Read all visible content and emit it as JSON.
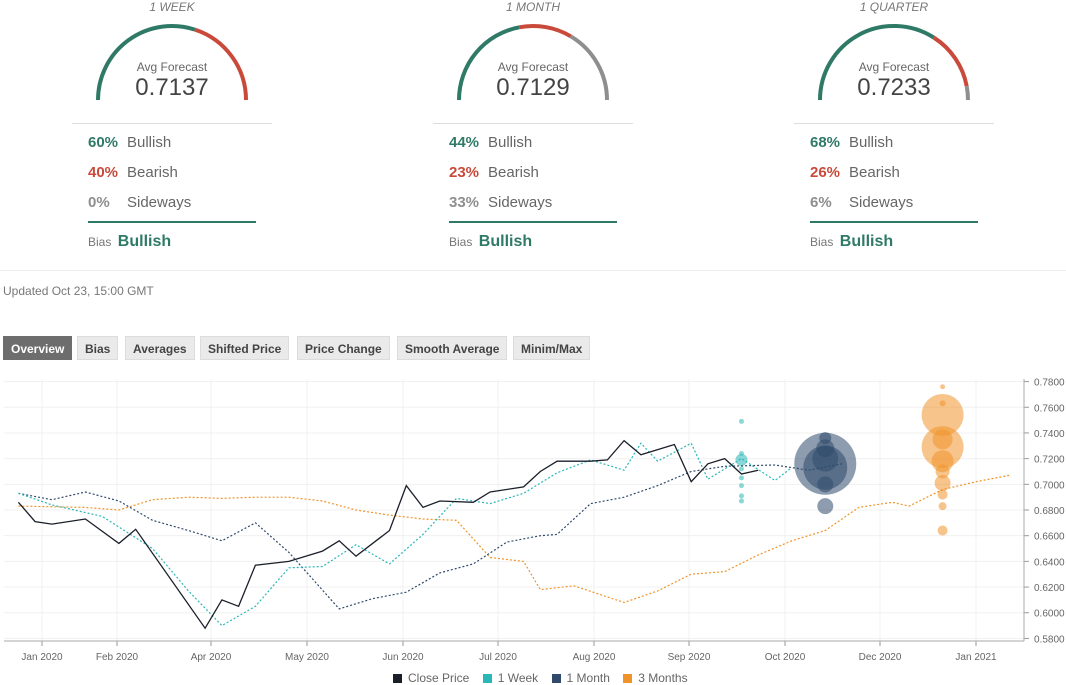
{
  "panels": [
    {
      "period": "1 WEEK",
      "avg_label": "Avg Forecast",
      "avg_value": "0.7137",
      "bullish_pct": "60%",
      "bullish_label": "Bullish",
      "bearish_pct": "40%",
      "bearish_label": "Bearish",
      "sideways_pct": "0%",
      "sideways_label": "Sideways",
      "bias_label": "Bias",
      "bias_value": "Bullish",
      "split": {
        "bullish": 0.6,
        "bearish": 0.4,
        "sideways": 0.0
      }
    },
    {
      "period": "1 MONTH",
      "avg_label": "Avg Forecast",
      "avg_value": "0.7129",
      "bullish_pct": "44%",
      "bullish_label": "Bullish",
      "bearish_pct": "23%",
      "bearish_label": "Bearish",
      "sideways_pct": "33%",
      "sideways_label": "Sideways",
      "bias_label": "Bias",
      "bias_value": "Bullish",
      "split": {
        "bullish": 0.44,
        "bearish": 0.23,
        "sideways": 0.33
      }
    },
    {
      "period": "1 QUARTER",
      "avg_label": "Avg Forecast",
      "avg_value": "0.7233",
      "bullish_pct": "68%",
      "bullish_label": "Bullish",
      "bearish_pct": "26%",
      "bearish_label": "Bearish",
      "sideways_pct": "6%",
      "sideways_label": "Sideways",
      "bias_label": "Bias",
      "bias_value": "Bullish",
      "split": {
        "bullish": 0.68,
        "bearish": 0.26,
        "sideways": 0.06
      }
    }
  ],
  "updated": "Updated Oct 23, 15:00 GMT",
  "tabs": [
    "Overview",
    "Bias",
    "Averages",
    "Shifted Price",
    "Price Change",
    "Smooth Average",
    "Minim/Max"
  ],
  "active_tab": "Overview",
  "colors": {
    "bullish": "#2f7a66",
    "bearish": "#c94a3a",
    "sideways": "#8e8e8e",
    "close": "#1b1f2a",
    "week": "#2ab7b7",
    "month": "#2f4a6b",
    "quarter": "#f0932b"
  },
  "chart_data": {
    "type": "line",
    "x_ticks": [
      "Jan 2020",
      "Feb 2020",
      "Apr 2020",
      "May 2020",
      "Jun 2020",
      "Jul 2020",
      "Aug 2020",
      "Sep 2020",
      "Oct 2020",
      "Dec 2020",
      "Jan 2021"
    ],
    "y_ticks": [
      "0.7800",
      "0.7600",
      "0.7400",
      "0.7200",
      "0.7000",
      "0.6800",
      "0.6600",
      "0.6400",
      "0.6200",
      "0.6000",
      "0.5800"
    ],
    "ylim": [
      0.578,
      0.782
    ],
    "legend": [
      "Close Price",
      "1 Week",
      "1 Month",
      "3 Months"
    ],
    "legend_position": "bottom",
    "series": [
      {
        "name": "Close Price",
        "style": "solid",
        "color": "#1b1f2a",
        "points": [
          [
            "2020-01-01",
            0.686
          ],
          [
            "2020-01-08",
            0.671
          ],
          [
            "2020-01-15",
            0.669
          ],
          [
            "2020-01-29",
            0.673
          ],
          [
            "2020-02-12",
            0.654
          ],
          [
            "2020-02-19",
            0.665
          ],
          [
            "2020-03-19",
            0.588
          ],
          [
            "2020-03-26",
            0.61
          ],
          [
            "2020-04-02",
            0.605
          ],
          [
            "2020-04-09",
            0.637
          ],
          [
            "2020-04-23",
            0.64
          ],
          [
            "2020-05-07",
            0.648
          ],
          [
            "2020-05-14",
            0.656
          ],
          [
            "2020-05-21",
            0.644
          ],
          [
            "2020-06-04",
            0.664
          ],
          [
            "2020-06-11",
            0.699
          ],
          [
            "2020-06-18",
            0.682
          ],
          [
            "2020-06-25",
            0.687
          ],
          [
            "2020-07-09",
            0.686
          ],
          [
            "2020-07-16",
            0.694
          ],
          [
            "2020-07-30",
            0.698
          ],
          [
            "2020-08-06",
            0.71
          ],
          [
            "2020-08-13",
            0.718
          ],
          [
            "2020-08-27",
            0.718
          ],
          [
            "2020-09-03",
            0.719
          ],
          [
            "2020-09-10",
            0.734
          ],
          [
            "2020-09-17",
            0.723
          ],
          [
            "2020-09-24",
            0.727
          ],
          [
            "2020-10-01",
            0.731
          ],
          [
            "2020-10-08",
            0.702
          ],
          [
            "2020-10-15",
            0.716
          ],
          [
            "2020-10-22",
            0.72
          ],
          [
            "2020-10-29",
            0.708
          ],
          [
            "2020-11-05",
            0.711
          ]
        ]
      },
      {
        "name": "1 Week",
        "style": "dotted",
        "color": "#2ab7b7",
        "points": [
          [
            "2020-01-01",
            0.693
          ],
          [
            "2020-01-15",
            0.684
          ],
          [
            "2020-02-05",
            0.675
          ],
          [
            "2020-02-26",
            0.65
          ],
          [
            "2020-03-12",
            0.617
          ],
          [
            "2020-03-26",
            0.59
          ],
          [
            "2020-04-09",
            0.605
          ],
          [
            "2020-04-23",
            0.635
          ],
          [
            "2020-05-07",
            0.636
          ],
          [
            "2020-05-21",
            0.653
          ],
          [
            "2020-06-04",
            0.638
          ],
          [
            "2020-06-18",
            0.661
          ],
          [
            "2020-07-02",
            0.689
          ],
          [
            "2020-07-16",
            0.685
          ],
          [
            "2020-07-30",
            0.693
          ],
          [
            "2020-08-13",
            0.709
          ],
          [
            "2020-08-27",
            0.719
          ],
          [
            "2020-09-10",
            0.711
          ],
          [
            "2020-09-17",
            0.732
          ],
          [
            "2020-09-24",
            0.718
          ],
          [
            "2020-10-08",
            0.732
          ],
          [
            "2020-10-15",
            0.704
          ],
          [
            "2020-10-29",
            0.72
          ],
          [
            "2020-11-12",
            0.703
          ],
          [
            "2020-11-19",
            0.713
          ]
        ]
      },
      {
        "name": "1 Month",
        "style": "dotted",
        "color": "#2f4a6b",
        "points": [
          [
            "2020-01-01",
            0.693
          ],
          [
            "2020-01-15",
            0.688
          ],
          [
            "2020-01-29",
            0.694
          ],
          [
            "2020-02-12",
            0.687
          ],
          [
            "2020-02-26",
            0.672
          ],
          [
            "2020-03-12",
            0.664
          ],
          [
            "2020-03-26",
            0.656
          ],
          [
            "2020-04-09",
            0.67
          ],
          [
            "2020-04-23",
            0.647
          ],
          [
            "2020-05-14",
            0.603
          ],
          [
            "2020-05-28",
            0.611
          ],
          [
            "2020-06-11",
            0.616
          ],
          [
            "2020-06-25",
            0.631
          ],
          [
            "2020-07-09",
            0.638
          ],
          [
            "2020-07-23",
            0.655
          ],
          [
            "2020-08-06",
            0.66
          ],
          [
            "2020-08-13",
            0.661
          ],
          [
            "2020-08-27",
            0.685
          ],
          [
            "2020-09-10",
            0.69
          ],
          [
            "2020-09-24",
            0.699
          ],
          [
            "2020-10-08",
            0.71
          ],
          [
            "2020-10-22",
            0.714
          ],
          [
            "2020-11-12",
            0.715
          ],
          [
            "2020-11-26",
            0.711
          ],
          [
            "2020-12-10",
            0.716
          ]
        ]
      },
      {
        "name": "3 Months",
        "style": "dotted",
        "color": "#f0932b",
        "points": [
          [
            "2020-01-01",
            0.683
          ],
          [
            "2020-01-29",
            0.682
          ],
          [
            "2020-02-12",
            0.68
          ],
          [
            "2020-02-26",
            0.688
          ],
          [
            "2020-03-12",
            0.69
          ],
          [
            "2020-03-26",
            0.689
          ],
          [
            "2020-04-09",
            0.69
          ],
          [
            "2020-04-23",
            0.69
          ],
          [
            "2020-05-07",
            0.687
          ],
          [
            "2020-05-21",
            0.68
          ],
          [
            "2020-06-04",
            0.676
          ],
          [
            "2020-06-18",
            0.673
          ],
          [
            "2020-07-02",
            0.672
          ],
          [
            "2020-07-16",
            0.643
          ],
          [
            "2020-07-30",
            0.64
          ],
          [
            "2020-08-06",
            0.618
          ],
          [
            "2020-08-20",
            0.621
          ],
          [
            "2020-09-10",
            0.608
          ],
          [
            "2020-09-24",
            0.617
          ],
          [
            "2020-10-08",
            0.63
          ],
          [
            "2020-10-22",
            0.632
          ],
          [
            "2020-11-05",
            0.645
          ],
          [
            "2020-11-19",
            0.656
          ],
          [
            "2020-12-03",
            0.664
          ],
          [
            "2020-12-17",
            0.682
          ],
          [
            "2020-12-31",
            0.686
          ],
          [
            "2021-01-07",
            0.683
          ],
          [
            "2021-01-21",
            0.696
          ],
          [
            "2021-02-04",
            0.702
          ],
          [
            "2021-02-18",
            0.707
          ]
        ]
      }
    ],
    "forecast_bubbles": [
      {
        "series": "1 Week",
        "values": [
          0.749,
          0.724,
          0.719,
          0.712,
          0.705,
          0.699,
          0.691,
          0.687
        ]
      },
      {
        "series": "1 Month",
        "values": [
          0.736,
          0.728,
          0.72,
          0.716,
          0.713,
          0.7,
          0.683
        ]
      },
      {
        "series": "3 Months",
        "values": [
          0.776,
          0.763,
          0.754,
          0.735,
          0.729,
          0.718,
          0.71,
          0.701,
          0.692,
          0.683,
          0.664
        ]
      }
    ]
  }
}
